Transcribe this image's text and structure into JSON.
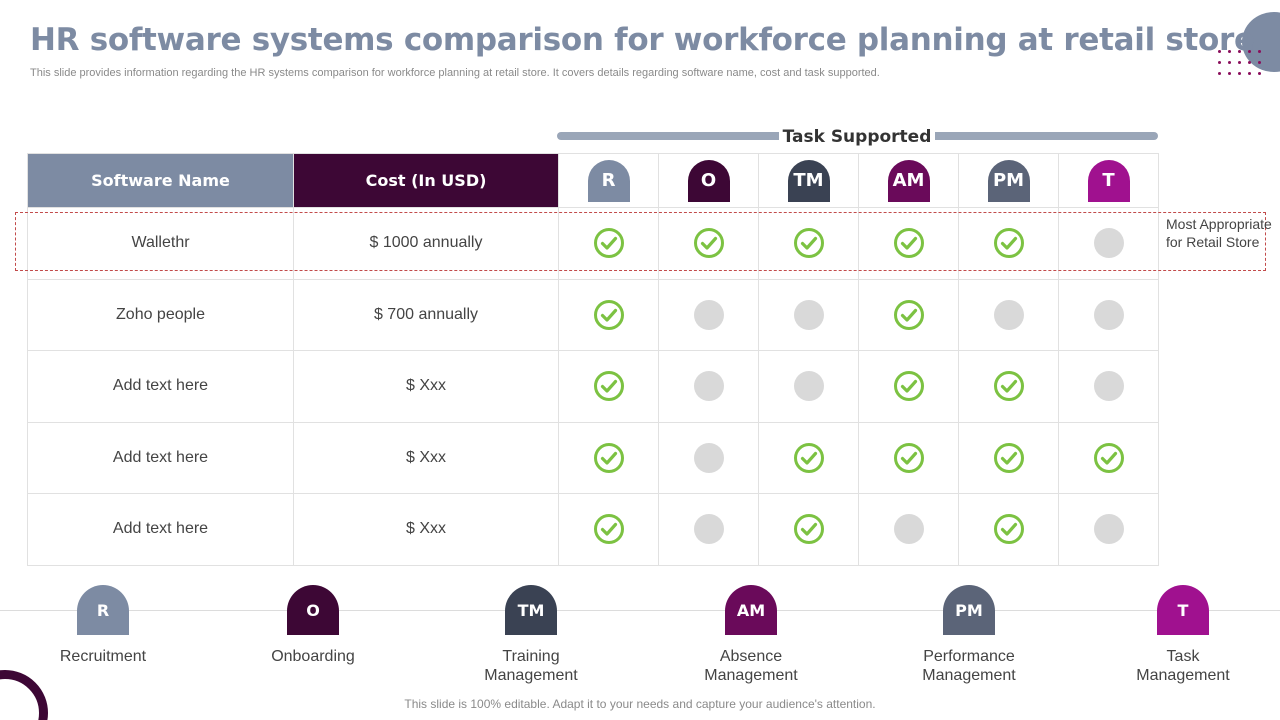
{
  "title": "HR software systems comparison for workforce planning at retail store",
  "subtitle": "This slide provides information regarding the HR systems comparison for workforce planning at retail store. It covers details regarding software name, cost and task supported.",
  "task_supported_label": "Task Supported",
  "headers": {
    "software": "Software Name",
    "cost": "Cost (In USD)"
  },
  "tasks": [
    {
      "abbr": "R",
      "name": "Recruitment",
      "color": "#7d8ba3"
    },
    {
      "abbr": "O",
      "name": "Onboarding",
      "color": "#3d0735"
    },
    {
      "abbr": "TM",
      "name": "Training\nManagement",
      "color": "#3a4253"
    },
    {
      "abbr": "AM",
      "name": "Absence\nManagement",
      "color": "#6a0a5a"
    },
    {
      "abbr": "PM",
      "name": "Performance\nManagement",
      "color": "#5b6478"
    },
    {
      "abbr": "T",
      "name": "Task\nManagement",
      "color": "#a0118f"
    }
  ],
  "rows": [
    {
      "software": "Wallethr",
      "cost": "$ 1000 annually",
      "support": [
        true,
        true,
        true,
        true,
        true,
        false
      ]
    },
    {
      "software": "Zoho people",
      "cost": "$ 700 annually",
      "support": [
        true,
        false,
        false,
        true,
        false,
        false
      ]
    },
    {
      "software": "Add text here",
      "cost": "$ Xxx",
      "support": [
        true,
        false,
        false,
        true,
        true,
        false
      ]
    },
    {
      "software": "Add text here",
      "cost": "$ Xxx",
      "support": [
        true,
        false,
        true,
        true,
        true,
        true
      ]
    },
    {
      "software": "Add text here",
      "cost": "$ Xxx",
      "support": [
        true,
        false,
        true,
        false,
        true,
        false
      ]
    }
  ],
  "highlight_note": "Most Appropriate for Retail Store",
  "footer": "This slide is 100% editable. Adapt it to your needs and capture your audience's attention.",
  "colors": {
    "check": "#7cc242",
    "unsupported": "#d9d9d9",
    "highlight_border": "#c24b4b"
  }
}
